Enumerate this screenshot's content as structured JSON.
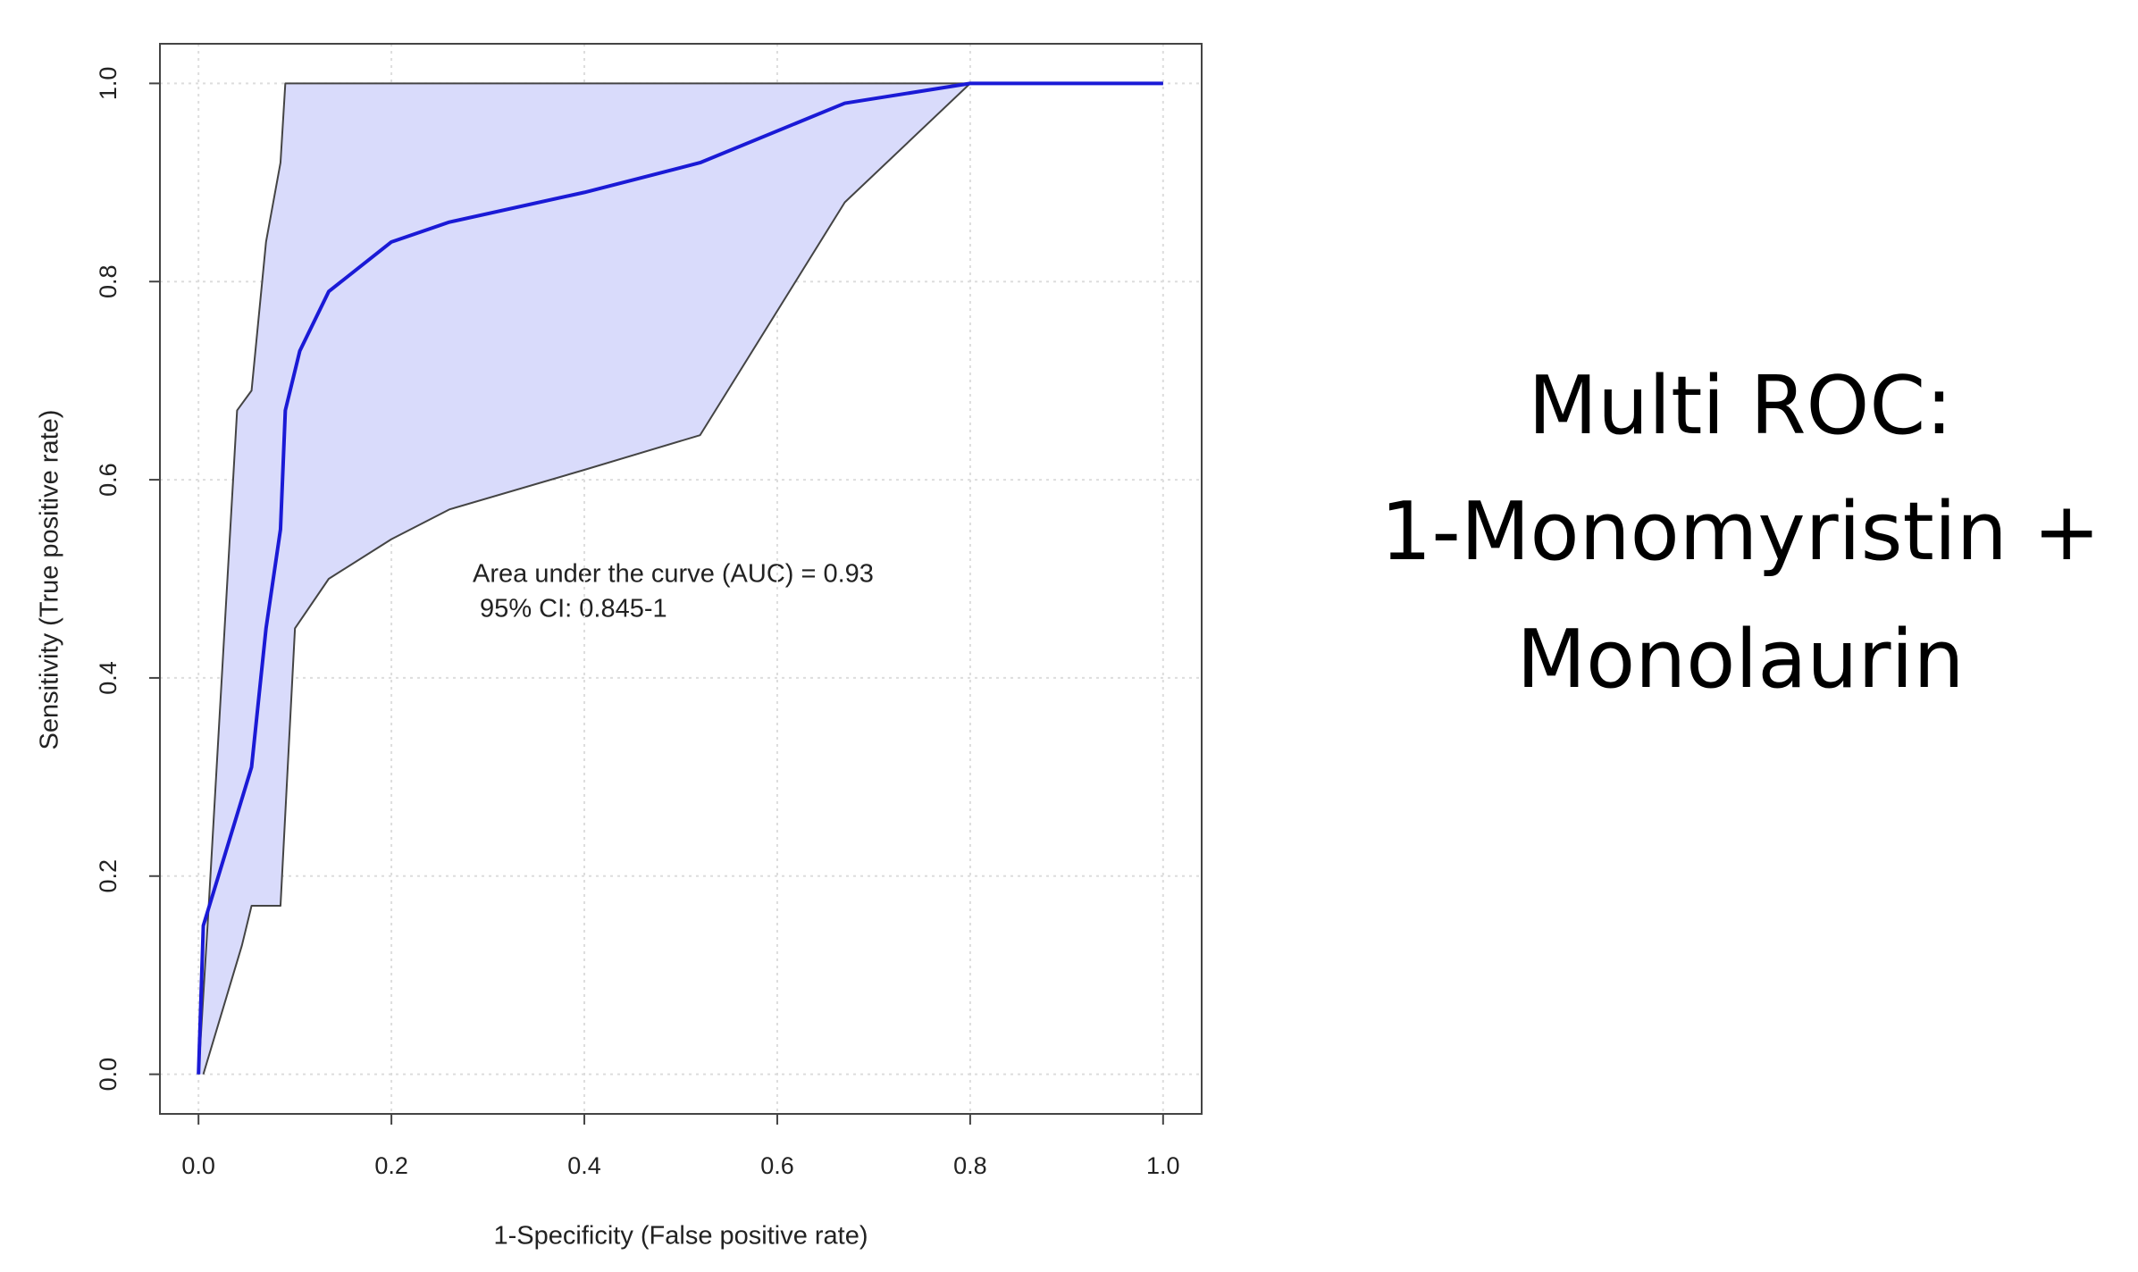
{
  "chart_data": {
    "type": "line",
    "title": [
      "Multi ROC:",
      "1-Monomyristin +",
      "Monolaurin"
    ],
    "xlabel": "1-Specificity (False positive rate)",
    "ylabel": "Sensitivity (True positive rate)",
    "annotations": [
      "Area under the curve (AUC) = 0.93",
      " 95% CI: 0.845-1"
    ],
    "xlim": [
      -0.04,
      1.04
    ],
    "ylim": [
      -0.04,
      1.04
    ],
    "xticks": [
      {
        "value": 0,
        "label": "0.0"
      },
      0.2,
      0.4,
      0.6,
      0.8,
      {
        "value": 1,
        "label": "1.0"
      }
    ],
    "yticks": [
      {
        "value": 0,
        "label": "0.0"
      },
      0.2,
      0.4,
      0.6,
      0.8,
      {
        "value": 1,
        "label": "1.0"
      }
    ],
    "grid": true,
    "band_fill": "#d9dbfb",
    "series": [
      {
        "color": "#1a1ad6",
        "x": [
          0,
          0.005,
          0.055,
          0.07,
          0.085,
          0.09,
          0.105,
          0.135,
          0.2,
          0.26,
          0.4,
          0.52,
          0.67,
          0.8,
          1.0
        ],
        "values": [
          0,
          0.15,
          0.31,
          0.45,
          0.55,
          0.67,
          0.73,
          0.79,
          0.84,
          0.86,
          0.89,
          0.92,
          0.98,
          1.0,
          1.0
        ]
      },
      {
        "color": "#444444",
        "x": [
          0,
          0.01,
          0.04,
          0.055,
          0.07,
          0.085,
          0.09,
          1.0
        ],
        "values": [
          0,
          0.16,
          0.67,
          0.69,
          0.84,
          0.92,
          1.0,
          1.0
        ]
      },
      {
        "color": "#444444",
        "x": [
          0.005,
          0.045,
          0.055,
          0.085,
          0.1,
          0.135,
          0.2,
          0.26,
          0.4,
          0.52,
          0.67,
          0.8,
          1.0
        ],
        "values": [
          0,
          0.13,
          0.17,
          0.17,
          0.45,
          0.5,
          0.54,
          0.57,
          0.61,
          0.645,
          0.88,
          1.0,
          1.0
        ]
      }
    ]
  }
}
